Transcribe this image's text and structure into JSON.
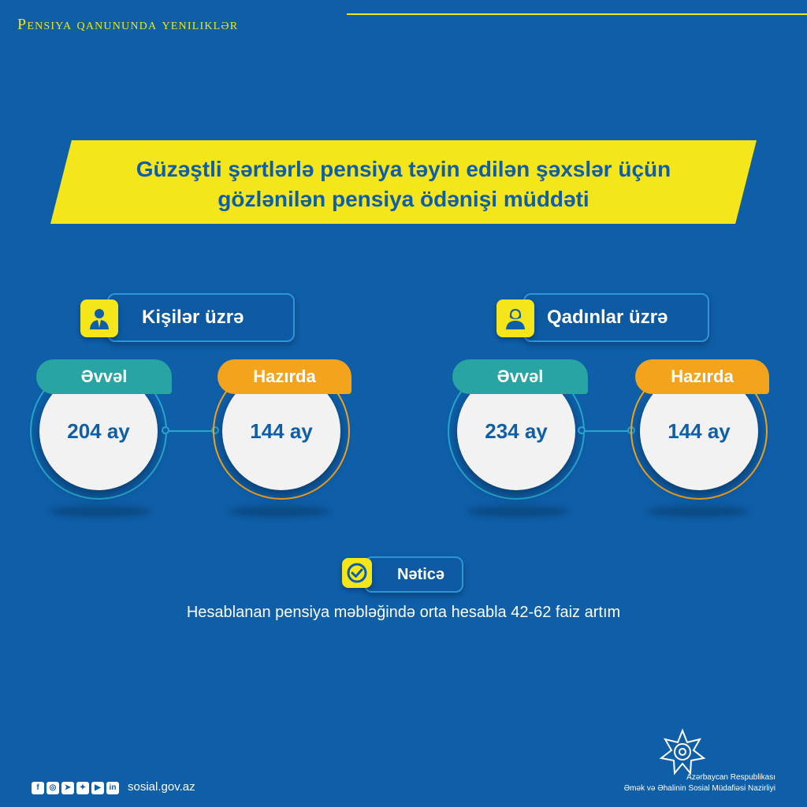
{
  "header": {
    "title": "Pensiya qanununda yeniliklər"
  },
  "banner": {
    "line1": "Güzəştli şərtlərlə pensiya təyin edilən şəxslər üçün",
    "line2": "gözlənilən pensiya ödənişi müddəti"
  },
  "men": {
    "label": "Kişilər üzrə",
    "icon": "male-person-icon",
    "before_label": "Əvvəl",
    "before_value": "204 ay",
    "now_label": "Hazırda",
    "now_value": "144 ay"
  },
  "women": {
    "label": "Qadınlar üzrə",
    "icon": "female-person-icon",
    "before_label": "Əvvəl",
    "before_value": "234 ay",
    "now_label": "Hazırda",
    "now_value": "144 ay"
  },
  "result": {
    "label": "Nəticə",
    "icon": "check-circle-icon",
    "text": "Hesablanan pensiya məbləğində orta hesabla 42-62 faiz artım"
  },
  "footer": {
    "website": "sosial.gov.az",
    "social_icons": [
      "facebook-icon",
      "instagram-icon",
      "telegram-icon",
      "twitter-icon",
      "youtube-icon",
      "linkedin-icon"
    ],
    "org_line1": "Azərbaycan Respublikası",
    "org_line2": "Əmək və Əhalinin Sosial Müdafiəsi Nazirliyi"
  },
  "colors": {
    "background": "#0e5ea8",
    "accent_yellow": "#f5e51b",
    "teal": "#28a4a2",
    "orange": "#f4a31c"
  }
}
